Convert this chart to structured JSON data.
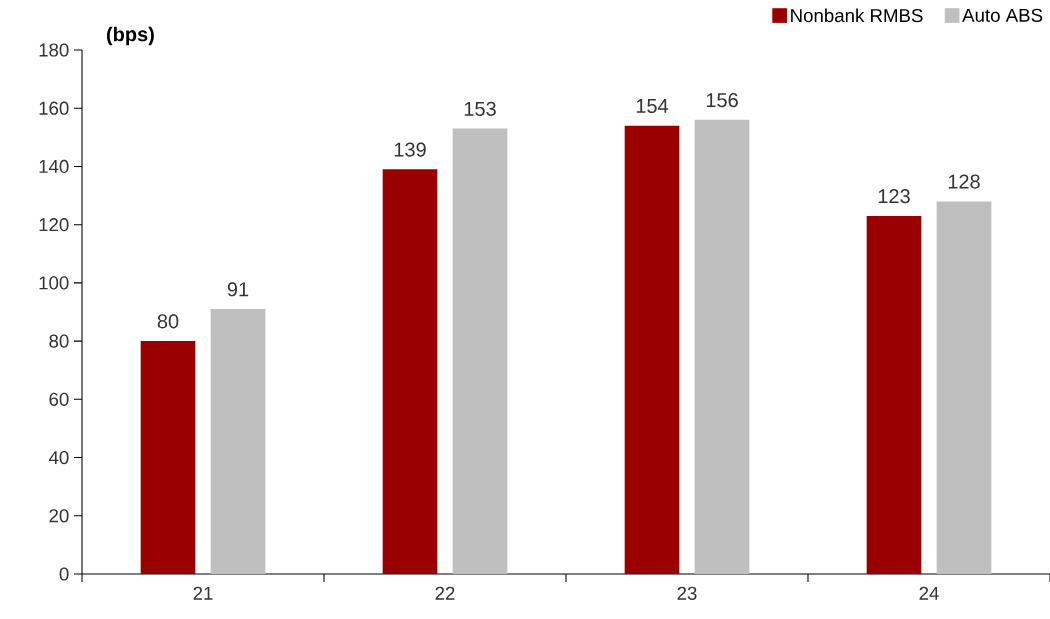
{
  "chart_data": {
    "type": "bar",
    "ylabel": "(bps)",
    "categories": [
      "21",
      "22",
      "23",
      "24"
    ],
    "series": [
      {
        "name": "Nonbank RMBS",
        "color": "#9b0000",
        "values": [
          80,
          139,
          154,
          123
        ]
      },
      {
        "name": "Auto ABS",
        "color": "#bfbfbf",
        "values": [
          91,
          153,
          156,
          128
        ]
      }
    ],
    "ylim": [
      0,
      180
    ],
    "yticks": [
      0,
      20,
      40,
      60,
      80,
      100,
      120,
      140,
      160,
      180
    ],
    "data_labels": true,
    "legend": "top right",
    "grid": false
  }
}
